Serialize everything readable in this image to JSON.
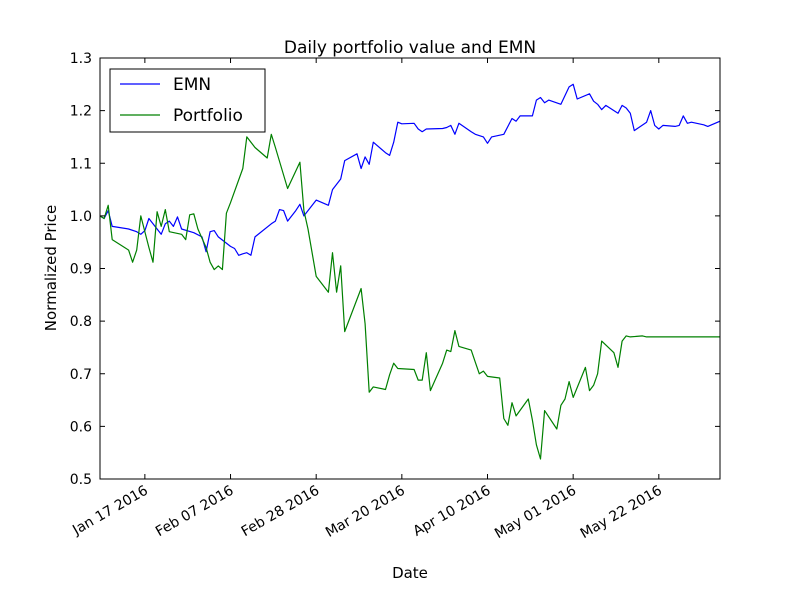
{
  "chart_data": {
    "type": "line",
    "title": "Daily portfolio value and EMN",
    "xlabel": "Date",
    "ylabel": "Normalized Price",
    "xlim": [
      "2016-01-06",
      "2016-06-06"
    ],
    "ylim": [
      0.5,
      1.3
    ],
    "y_ticks": [
      0.5,
      0.6,
      0.7,
      0.8,
      0.9,
      1.0,
      1.1,
      1.2,
      1.3
    ],
    "y_tick_labels": [
      "0.5",
      "0.6",
      "0.7",
      "0.8",
      "0.9",
      "1.0",
      "1.1",
      "1.2",
      "1.3"
    ],
    "x_ticks": [
      "2016-01-17",
      "2016-02-07",
      "2016-02-28",
      "2016-03-20",
      "2016-04-10",
      "2016-05-01",
      "2016-05-22"
    ],
    "x_tick_labels": [
      "Jan 17 2016",
      "Feb 07 2016",
      "Feb 28 2016",
      "Mar 20 2016",
      "Apr 10 2016",
      "May 01 2016",
      "May 22 2016"
    ],
    "grid": false,
    "legend": "top-left",
    "series": [
      {
        "name": "EMN",
        "color": "#0000ff",
        "points": [
          [
            "2016-01-06",
            1.0
          ],
          [
            "2016-01-07",
            0.995
          ],
          [
            "2016-01-08",
            1.01
          ],
          [
            "2016-01-09",
            0.98
          ],
          [
            "2016-01-13",
            0.975
          ],
          [
            "2016-01-15",
            0.97
          ],
          [
            "2016-01-16",
            0.965
          ],
          [
            "2016-01-17",
            0.972
          ],
          [
            "2016-01-18",
            0.995
          ],
          [
            "2016-01-21",
            0.965
          ],
          [
            "2016-01-22",
            0.985
          ],
          [
            "2016-01-23",
            0.99
          ],
          [
            "2016-01-24",
            0.98
          ],
          [
            "2016-01-25",
            0.998
          ],
          [
            "2016-01-26",
            0.975
          ],
          [
            "2016-01-29",
            0.968
          ],
          [
            "2016-01-31",
            0.96
          ],
          [
            "2016-02-01",
            0.932
          ],
          [
            "2016-02-02",
            0.97
          ],
          [
            "2016-02-03",
            0.972
          ],
          [
            "2016-02-04",
            0.96
          ],
          [
            "2016-02-07",
            0.942
          ],
          [
            "2016-02-08",
            0.938
          ],
          [
            "2016-02-09",
            0.925
          ],
          [
            "2016-02-10",
            0.928
          ],
          [
            "2016-02-11",
            0.93
          ],
          [
            "2016-02-12",
            0.925
          ],
          [
            "2016-02-13",
            0.96
          ],
          [
            "2016-02-17",
            0.985
          ],
          [
            "2016-02-18",
            0.99
          ],
          [
            "2016-02-19",
            1.012
          ],
          [
            "2016-02-20",
            1.01
          ],
          [
            "2016-02-21",
            0.99
          ],
          [
            "2016-02-23",
            1.01
          ],
          [
            "2016-02-24",
            1.022
          ],
          [
            "2016-02-25",
            1.0
          ],
          [
            "2016-02-28",
            1.03
          ],
          [
            "2016-03-02",
            1.02
          ],
          [
            "2016-03-03",
            1.05
          ],
          [
            "2016-03-05",
            1.07
          ],
          [
            "2016-03-06",
            1.105
          ],
          [
            "2016-03-09",
            1.118
          ],
          [
            "2016-03-10",
            1.09
          ],
          [
            "2016-03-11",
            1.112
          ],
          [
            "2016-03-12",
            1.098
          ],
          [
            "2016-03-13",
            1.14
          ],
          [
            "2016-03-16",
            1.12
          ],
          [
            "2016-03-17",
            1.115
          ],
          [
            "2016-03-18",
            1.14
          ],
          [
            "2016-03-19",
            1.178
          ],
          [
            "2016-03-20",
            1.175
          ],
          [
            "2016-03-23",
            1.176
          ],
          [
            "2016-03-24",
            1.165
          ],
          [
            "2016-03-25",
            1.16
          ],
          [
            "2016-03-26",
            1.165
          ],
          [
            "2016-03-30",
            1.166
          ],
          [
            "2016-03-31",
            1.168
          ],
          [
            "2016-04-01",
            1.172
          ],
          [
            "2016-04-02",
            1.155
          ],
          [
            "2016-04-03",
            1.176
          ],
          [
            "2016-04-06",
            1.16
          ],
          [
            "2016-04-07",
            1.155
          ],
          [
            "2016-04-09",
            1.15
          ],
          [
            "2016-04-10",
            1.138
          ],
          [
            "2016-04-11",
            1.15
          ],
          [
            "2016-04-14",
            1.155
          ],
          [
            "2016-04-16",
            1.185
          ],
          [
            "2016-04-17",
            1.18
          ],
          [
            "2016-04-18",
            1.19
          ],
          [
            "2016-04-21",
            1.19
          ],
          [
            "2016-04-22",
            1.22
          ],
          [
            "2016-04-23",
            1.225
          ],
          [
            "2016-04-24",
            1.215
          ],
          [
            "2016-04-25",
            1.22
          ],
          [
            "2016-04-28",
            1.212
          ],
          [
            "2016-04-30",
            1.245
          ],
          [
            "2016-05-01",
            1.25
          ],
          [
            "2016-05-02",
            1.222
          ],
          [
            "2016-05-05",
            1.232
          ],
          [
            "2016-05-06",
            1.218
          ],
          [
            "2016-05-07",
            1.212
          ],
          [
            "2016-05-08",
            1.202
          ],
          [
            "2016-05-09",
            1.21
          ],
          [
            "2016-05-12",
            1.195
          ],
          [
            "2016-05-13",
            1.21
          ],
          [
            "2016-05-14",
            1.205
          ],
          [
            "2016-05-15",
            1.195
          ],
          [
            "2016-05-16",
            1.162
          ],
          [
            "2016-05-19",
            1.178
          ],
          [
            "2016-05-20",
            1.2
          ],
          [
            "2016-05-21",
            1.172
          ],
          [
            "2016-05-22",
            1.165
          ],
          [
            "2016-05-23",
            1.172
          ],
          [
            "2016-05-26",
            1.17
          ],
          [
            "2016-05-27",
            1.172
          ],
          [
            "2016-05-28",
            1.19
          ],
          [
            "2016-05-29",
            1.176
          ],
          [
            "2016-05-30",
            1.178
          ],
          [
            "2016-06-02",
            1.173
          ],
          [
            "2016-06-03",
            1.17
          ],
          [
            "2016-06-06",
            1.18
          ]
        ]
      },
      {
        "name": "Portfolio",
        "color": "#008000",
        "points": [
          [
            "2016-01-06",
            1.0
          ],
          [
            "2016-01-07",
            0.995
          ],
          [
            "2016-01-08",
            1.02
          ],
          [
            "2016-01-09",
            0.955
          ],
          [
            "2016-01-13",
            0.935
          ],
          [
            "2016-01-14",
            0.912
          ],
          [
            "2016-01-15",
            0.935
          ],
          [
            "2016-01-16",
            1.0
          ],
          [
            "2016-01-18",
            0.94
          ],
          [
            "2016-01-19",
            0.912
          ],
          [
            "2016-01-20",
            1.008
          ],
          [
            "2016-01-21",
            0.98
          ],
          [
            "2016-01-22",
            1.012
          ],
          [
            "2016-01-23",
            0.97
          ],
          [
            "2016-01-26",
            0.965
          ],
          [
            "2016-01-27",
            0.955
          ],
          [
            "2016-01-28",
            1.002
          ],
          [
            "2016-01-29",
            1.004
          ],
          [
            "2016-01-30",
            0.975
          ],
          [
            "2016-02-01",
            0.94
          ],
          [
            "2016-02-02",
            0.912
          ],
          [
            "2016-02-03",
            0.898
          ],
          [
            "2016-02-04",
            0.905
          ],
          [
            "2016-02-05",
            0.898
          ],
          [
            "2016-02-06",
            1.005
          ],
          [
            "2016-02-07",
            1.025
          ],
          [
            "2016-02-10",
            1.09
          ],
          [
            "2016-02-11",
            1.15
          ],
          [
            "2016-02-13",
            1.13
          ],
          [
            "2016-02-16",
            1.11
          ],
          [
            "2016-02-17",
            1.155
          ],
          [
            "2016-02-18",
            1.13
          ],
          [
            "2016-02-21",
            1.052
          ],
          [
            "2016-02-24",
            1.102
          ],
          [
            "2016-02-25",
            1.01
          ],
          [
            "2016-02-26",
            0.975
          ],
          [
            "2016-02-28",
            0.885
          ],
          [
            "2016-03-02",
            0.855
          ],
          [
            "2016-03-03",
            0.93
          ],
          [
            "2016-03-04",
            0.855
          ],
          [
            "2016-03-05",
            0.905
          ],
          [
            "2016-03-06",
            0.78
          ],
          [
            "2016-03-10",
            0.862
          ],
          [
            "2016-03-11",
            0.795
          ],
          [
            "2016-03-12",
            0.665
          ],
          [
            "2016-03-13",
            0.675
          ],
          [
            "2016-03-16",
            0.67
          ],
          [
            "2016-03-17",
            0.698
          ],
          [
            "2016-03-18",
            0.72
          ],
          [
            "2016-03-19",
            0.71
          ],
          [
            "2016-03-23",
            0.708
          ],
          [
            "2016-03-24",
            0.688
          ],
          [
            "2016-03-25",
            0.688
          ],
          [
            "2016-03-26",
            0.74
          ],
          [
            "2016-03-27",
            0.668
          ],
          [
            "2016-03-30",
            0.72
          ],
          [
            "2016-03-31",
            0.745
          ],
          [
            "2016-04-01",
            0.742
          ],
          [
            "2016-04-02",
            0.782
          ],
          [
            "2016-04-03",
            0.752
          ],
          [
            "2016-04-06",
            0.745
          ],
          [
            "2016-04-07",
            0.722
          ],
          [
            "2016-04-08",
            0.7
          ],
          [
            "2016-04-09",
            0.705
          ],
          [
            "2016-04-10",
            0.695
          ],
          [
            "2016-04-13",
            0.692
          ],
          [
            "2016-04-14",
            0.615
          ],
          [
            "2016-04-15",
            0.602
          ],
          [
            "2016-04-16",
            0.645
          ],
          [
            "2016-04-17",
            0.62
          ],
          [
            "2016-04-20",
            0.652
          ],
          [
            "2016-04-21",
            0.612
          ],
          [
            "2016-04-22",
            0.565
          ],
          [
            "2016-04-23",
            0.538
          ],
          [
            "2016-04-24",
            0.63
          ],
          [
            "2016-04-27",
            0.595
          ],
          [
            "2016-04-28",
            0.64
          ],
          [
            "2016-04-29",
            0.652
          ],
          [
            "2016-04-30",
            0.685
          ],
          [
            "2016-05-01",
            0.655
          ],
          [
            "2016-05-04",
            0.712
          ],
          [
            "2016-05-05",
            0.668
          ],
          [
            "2016-05-06",
            0.678
          ],
          [
            "2016-05-07",
            0.7
          ],
          [
            "2016-05-08",
            0.762
          ],
          [
            "2016-05-11",
            0.74
          ],
          [
            "2016-05-12",
            0.712
          ],
          [
            "2016-05-13",
            0.762
          ],
          [
            "2016-05-14",
            0.772
          ],
          [
            "2016-05-15",
            0.77
          ],
          [
            "2016-05-18",
            0.772
          ],
          [
            "2016-05-19",
            0.77
          ],
          [
            "2016-06-06",
            0.77
          ]
        ]
      }
    ]
  }
}
